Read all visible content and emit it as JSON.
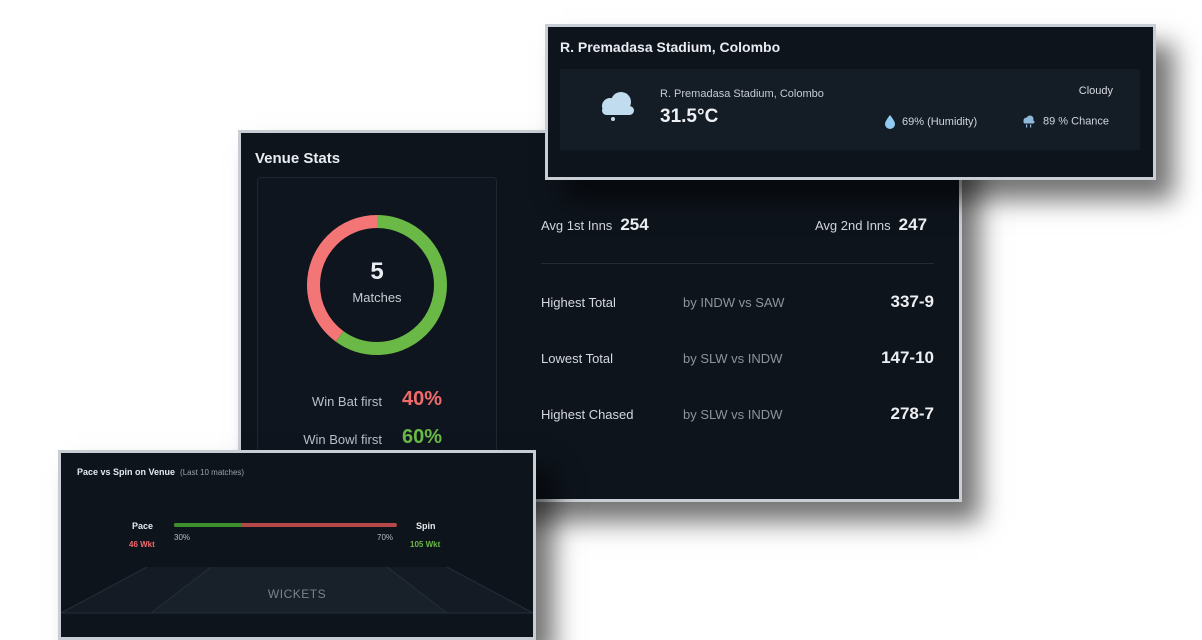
{
  "venue_stats": {
    "title": "Venue Stats",
    "matches_count": "5",
    "matches_label": "Matches",
    "bat_first_fraction": 0.4,
    "bowl_first_fraction": 0.6,
    "win_bat_first_label": "Win Bat first",
    "win_bat_first_value": "40%",
    "win_bowl_first_label": "Win Bowl first",
    "win_bowl_first_value": "60%",
    "avg_1st_label": "Avg 1st Inns",
    "avg_1st_value": "254",
    "avg_2nd_label": "Avg 2nd Inns",
    "avg_2nd_value": "247",
    "rows": [
      {
        "label": "Highest Total",
        "by": "by INDW vs SAW",
        "value": "337-9"
      },
      {
        "label": "Lowest Total",
        "by": "by SLW vs INDW",
        "value": "147-10"
      },
      {
        "label": "Highest Chased",
        "by": "by SLW vs INDW",
        "value": "278-7"
      }
    ],
    "colors": {
      "bat": "#f47575",
      "bowl": "#6ab845"
    }
  },
  "weather": {
    "title": "R. Premadasa Stadium, Colombo",
    "location": "R. Premadasa Stadium, Colombo",
    "temperature": "31.5°C",
    "condition": "Cloudy",
    "humidity": "69% (Humidity)",
    "rain_chance": "89 % Chance",
    "icons": [
      "cloud-icon",
      "water-drop-icon",
      "rain-cloud-icon"
    ]
  },
  "pace_spin": {
    "title": "Pace vs Spin on Venue",
    "subtitle": "(Last 10 matches)",
    "pace_label": "Pace",
    "pace_wkt": "46 Wkt",
    "spin_label": "Spin",
    "spin_wkt": "105 Wkt",
    "pace_pct_text": "30%",
    "spin_pct_text": "70%",
    "pace_fraction": 0.3,
    "field_label": "WICKETS",
    "colors": {
      "pace": "#3d8f2e",
      "spin": "#b54848"
    }
  }
}
